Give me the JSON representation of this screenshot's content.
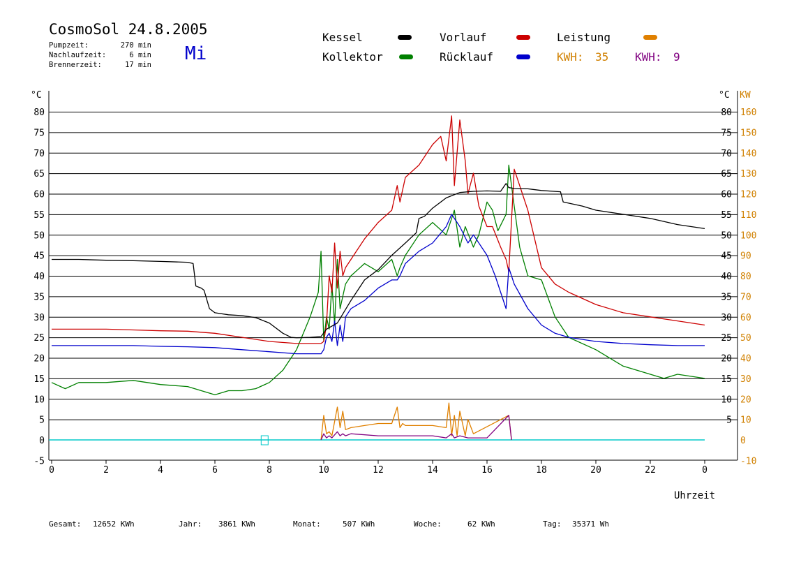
{
  "header": {
    "title": "CosmoSol 24.8.2005",
    "day": "Mi",
    "info": [
      {
        "label": "Pumpzeit:",
        "value": "270 min"
      },
      {
        "label": "Nachlaufzeit:",
        "value": "6 min"
      },
      {
        "label": "Brennerzeit:",
        "value": "17 min"
      }
    ]
  },
  "legend": {
    "kessel": "Kessel",
    "kollektor": "Kollektor",
    "vorlauf": "Vorlauf",
    "ruecklauf": "Rücklauf",
    "leistung": "Leistung",
    "kwh1_label": "KWH:",
    "kwh1_value": "35",
    "kwh2_label": "KWH:",
    "kwh2_value": "9"
  },
  "footer": {
    "gesamt_label": "Gesamt:",
    "gesamt_value": "12652 KWh",
    "jahr_label": "Jahr:",
    "jahr_value": "3861 KWh",
    "monat_label": "Monat:",
    "monat_value": "507 KWh",
    "woche_label": "Woche:",
    "woche_value": "62 KWh",
    "tag_label": "Tag:",
    "tag_value": "35371 Wh"
  },
  "colors": {
    "kessel": "#000000",
    "kollektor": "#008000",
    "vorlauf": "#cc0000",
    "ruecklauf": "#0000cc",
    "leistung": "#e08000",
    "leistung2": "#800080",
    "baseline": "#00c8c8",
    "right_axis": "#d08000"
  },
  "chart_data": {
    "type": "line",
    "xlabel": "Uhrzeit",
    "ylabel_left": "°C",
    "ylabel_right_temp": "°C",
    "ylabel_right_power": "KW",
    "xlim": [
      0,
      24
    ],
    "ylim": [
      -5,
      85
    ],
    "x_ticks": [
      "0",
      "2",
      "4",
      "6",
      "8",
      "10",
      "12",
      "14",
      "16",
      "18",
      "20",
      "22",
      "0"
    ],
    "y_ticks_left": [
      "-5",
      "0",
      "5",
      "10",
      "15",
      "20",
      "25",
      "30",
      "35",
      "40",
      "45",
      "50",
      "55",
      "60",
      "65",
      "70",
      "75",
      "80"
    ],
    "y_ticks_right_temp": [
      "5",
      "10",
      "15",
      "20",
      "25",
      "30",
      "35",
      "40",
      "45",
      "50",
      "55",
      "60",
      "65",
      "70",
      "75",
      "80"
    ],
    "y_ticks_right_power": [
      "-10",
      "0",
      "10",
      "20",
      "30",
      "40",
      "50",
      "60",
      "70",
      "80",
      "90",
      "100",
      "110",
      "120",
      "130",
      "140",
      "150",
      "160"
    ],
    "grid": "horizontal",
    "series": [
      {
        "name": "Kessel",
        "color_key": "kessel",
        "x": [
          0,
          1,
          2,
          3,
          4,
          5,
          5.2,
          5.3,
          5.5,
          5.6,
          5.8,
          6.0,
          6.5,
          7.0,
          7.5,
          8.0,
          8.5,
          8.8,
          9.0,
          9.5,
          9.9,
          10.1,
          10.5,
          11,
          11.5,
          12,
          12.5,
          13,
          13.4,
          13.5,
          13.7,
          14,
          14.5,
          15,
          15.5,
          16,
          16.5,
          16.7,
          16.8,
          17,
          17.5,
          18,
          18.7,
          18.8,
          19.5,
          20,
          21,
          22,
          23,
          24
        ],
        "y": [
          44,
          44,
          43.8,
          43.7,
          43.5,
          43.3,
          43,
          37.5,
          37,
          36.5,
          32,
          31,
          30.5,
          30.3,
          29.8,
          28.5,
          26,
          25,
          24.9,
          25,
          25.2,
          27,
          28.5,
          34,
          39,
          41.5,
          45,
          48,
          50.5,
          54,
          54.5,
          56.5,
          59,
          60.3,
          60.6,
          60.7,
          60.6,
          62.5,
          61.5,
          61.3,
          61.2,
          60.8,
          60.5,
          58,
          57,
          56,
          55,
          54,
          52.5,
          51.5
        ]
      },
      {
        "name": "Kollektor",
        "color_key": "kollektor",
        "x": [
          0,
          0.5,
          1,
          2,
          3,
          4,
          5,
          5.5,
          6,
          6.5,
          7,
          7.5,
          8,
          8.5,
          9,
          9.5,
          9.8,
          9.9,
          10,
          10.1,
          10.2,
          10.3,
          10.4,
          10.5,
          10.6,
          10.7,
          10.8,
          11,
          11.5,
          12,
          12.5,
          12.7,
          12.8,
          13,
          13.5,
          14,
          14.5,
          14.8,
          15,
          15.2,
          15.5,
          15.7,
          16,
          16.2,
          16.4,
          16.7,
          16.8,
          16.9,
          17.2,
          17.5,
          18,
          18.5,
          19,
          20,
          21,
          22,
          22.5,
          23,
          24
        ],
        "y": [
          14,
          12.5,
          14,
          14,
          14.5,
          13.5,
          13,
          12,
          11,
          12,
          12,
          12.5,
          14,
          17,
          22,
          30,
          36,
          46,
          24,
          30,
          27,
          38,
          28,
          44,
          32,
          35,
          38,
          40,
          43,
          41,
          44,
          40,
          42,
          45,
          50,
          53,
          50,
          56,
          47,
          52,
          47,
          50,
          58,
          56,
          51,
          55,
          67,
          62,
          47,
          40,
          39,
          30,
          25,
          22,
          18,
          16,
          15,
          16,
          15
        ]
      },
      {
        "name": "Vorlauf",
        "color_key": "vorlauf",
        "x": [
          0,
          1,
          2,
          3,
          4,
          5,
          6,
          7,
          8,
          9,
          9.9,
          10,
          10.1,
          10.2,
          10.3,
          10.4,
          10.5,
          10.6,
          10.7,
          10.8,
          11,
          11.5,
          12,
          12.5,
          12.7,
          12.8,
          13,
          13.5,
          14,
          14.3,
          14.5,
          14.7,
          14.8,
          14.9,
          15,
          15.2,
          15.3,
          15.5,
          15.7,
          16,
          16.2,
          16.5,
          16.7,
          16.8,
          17,
          17.5,
          18,
          18.5,
          19,
          20,
          21,
          22,
          23,
          24
        ],
        "y": [
          27,
          27,
          27,
          26.8,
          26.6,
          26.5,
          26,
          25,
          24,
          23.5,
          23.5,
          24,
          28,
          40,
          36,
          48,
          37,
          46,
          40,
          42,
          44,
          49,
          53,
          56,
          62,
          58,
          64,
          67,
          72,
          74,
          68,
          79,
          62,
          70,
          78,
          68,
          60,
          65,
          57,
          52,
          52,
          47,
          44,
          41,
          66,
          56,
          42,
          38,
          36,
          33,
          31,
          30,
          29,
          28
        ]
      },
      {
        "name": "Rücklauf",
        "color_key": "ruecklauf",
        "x": [
          0,
          1,
          2,
          3,
          4,
          5,
          6,
          7,
          8,
          9,
          9.9,
          10,
          10.1,
          10.2,
          10.3,
          10.4,
          10.5,
          10.6,
          10.7,
          10.8,
          11,
          11.5,
          12,
          12.5,
          12.7,
          12.8,
          13,
          13.5,
          14,
          14.5,
          14.7,
          15,
          15.3,
          15.5,
          16,
          16.3,
          16.7,
          16.8,
          17,
          17.5,
          18,
          18.5,
          19,
          20,
          21,
          22,
          23,
          24
        ],
        "y": [
          23,
          23,
          23,
          23,
          22.8,
          22.7,
          22.5,
          22,
          21.5,
          21,
          21,
          22,
          25,
          26,
          24,
          29,
          23,
          28,
          24,
          30,
          32,
          34,
          37,
          39,
          39,
          40,
          43,
          46,
          48,
          52,
          55,
          52,
          48,
          50,
          45,
          40,
          32,
          42,
          38,
          32,
          28,
          26,
          25,
          24,
          23.5,
          23.2,
          23,
          23
        ]
      },
      {
        "name": "Leistung",
        "color_key": "leistung",
        "axis": "right_power",
        "x": [
          9.9,
          10.0,
          10.1,
          10.2,
          10.3,
          10.5,
          10.6,
          10.7,
          10.8,
          11,
          11.5,
          12,
          12.5,
          12.7,
          12.8,
          12.9,
          13,
          13.5,
          14,
          14.5,
          14.6,
          14.7,
          14.8,
          14.9,
          15,
          15.2,
          15.3,
          15.5,
          16.8,
          16.9
        ],
        "y": [
          0,
          12,
          3,
          4,
          2,
          16,
          6,
          14,
          5,
          6,
          7,
          8,
          8,
          16,
          6,
          8,
          7,
          7,
          7,
          6,
          18,
          2,
          12,
          2,
          14,
          2,
          10,
          3,
          12,
          0
        ]
      },
      {
        "name": "KWH 9",
        "color_key": "leistung2",
        "axis": "right_power",
        "x": [
          9.9,
          10.0,
          10.1,
          10.2,
          10.3,
          10.5,
          10.6,
          10.7,
          10.8,
          11,
          12,
          12.7,
          12.8,
          13,
          13.5,
          14,
          14.5,
          14.7,
          14.8,
          15,
          15.3,
          15.5,
          16,
          16.8,
          16.9
        ],
        "y": [
          0,
          3,
          1,
          2,
          1,
          4,
          2,
          3,
          2,
          3,
          2,
          2,
          2,
          2,
          2,
          2,
          1,
          3,
          1,
          2,
          1,
          1,
          1,
          12,
          0
        ]
      }
    ]
  }
}
